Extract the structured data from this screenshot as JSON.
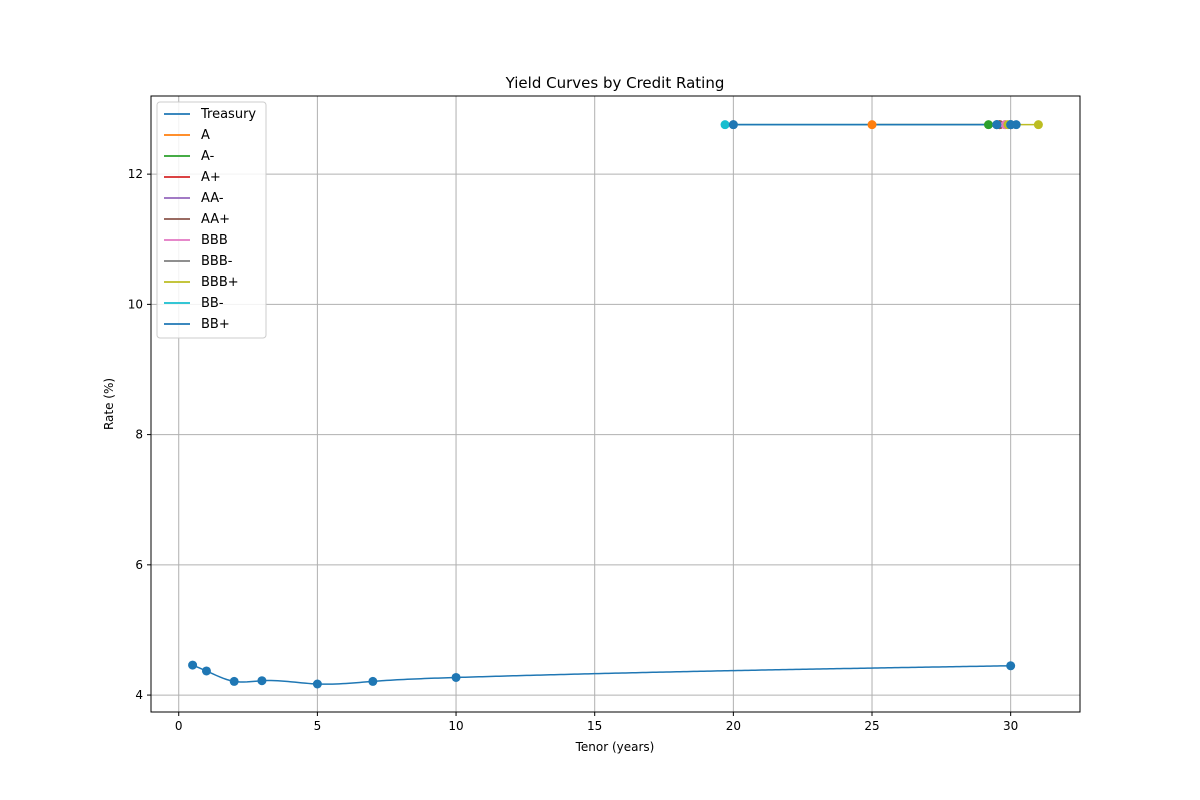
{
  "chart_data": {
    "type": "line",
    "title": "Yield Curves by Credit Rating",
    "xlabel": "Tenor (years)",
    "ylabel": "Rate (%)",
    "xlim": [
      -1.0,
      32.5
    ],
    "ylim": [
      3.74,
      13.2
    ],
    "xticks": [
      0,
      5,
      10,
      15,
      20,
      25,
      30
    ],
    "yticks": [
      4,
      6,
      8,
      10,
      12
    ],
    "grid": true,
    "legend_location": "upper left",
    "series": [
      {
        "name": "Treasury",
        "color": "#1f77b4",
        "smooth": true,
        "x": [
          0.5,
          1,
          2,
          3,
          5,
          7,
          10,
          30
        ],
        "y": [
          4.46,
          4.37,
          4.21,
          4.22,
          4.17,
          4.21,
          4.27,
          4.45
        ]
      },
      {
        "name": "A",
        "color": "#ff7f0e",
        "x": [
          25,
          29.8
        ],
        "y": [
          12.76,
          12.76
        ]
      },
      {
        "name": "A-",
        "color": "#2ca02c",
        "x": [
          29.2,
          29.5
        ],
        "y": [
          12.76,
          12.76
        ]
      },
      {
        "name": "A+",
        "color": "#d62728",
        "x": [
          29.6,
          30.0
        ],
        "y": [
          12.76,
          12.76
        ]
      },
      {
        "name": "AA-",
        "color": "#9467bd",
        "x": [
          29.5,
          30.0
        ],
        "y": [
          12.76,
          12.76
        ]
      },
      {
        "name": "AA+",
        "color": "#8c564b",
        "x": [
          29.6,
          30.0
        ],
        "y": [
          12.76,
          12.76
        ]
      },
      {
        "name": "BBB",
        "color": "#e377c2",
        "x": [
          29.8,
          30.0
        ],
        "y": [
          12.76,
          12.76
        ]
      },
      {
        "name": "BBB-",
        "color": "#7f7f7f",
        "x": [
          20.0,
          30.0
        ],
        "y": [
          12.76,
          12.76
        ]
      },
      {
        "name": "BBB+",
        "color": "#bcbd22",
        "x": [
          29.9,
          31.0
        ],
        "y": [
          12.76,
          12.76
        ]
      },
      {
        "name": "BB-",
        "color": "#17becf",
        "x": [
          19.7,
          29.5,
          30.0
        ],
        "y": [
          12.76,
          12.76,
          12.76
        ]
      },
      {
        "name": "BB+",
        "color": "#1f77b4",
        "x": [
          20.0,
          29.5,
          30.0,
          30.2
        ],
        "y": [
          12.76,
          12.76,
          12.76,
          12.76
        ]
      }
    ]
  }
}
